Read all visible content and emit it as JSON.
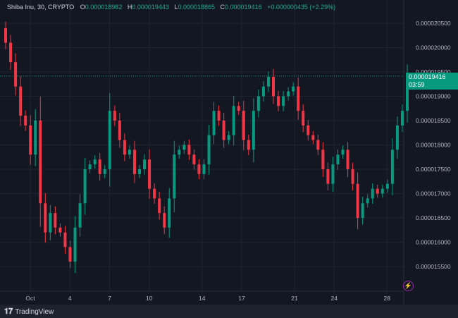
{
  "header": {
    "symbol": "Shiba Inu, 30, CRYPTO",
    "open_label": "O",
    "open": "0.000018982",
    "high_label": "H",
    "high": "0.000019443",
    "low_label": "L",
    "low": "0.000018865",
    "close_label": "C",
    "close": "0.000019416",
    "change": "+0.000000435 (+2.29%)"
  },
  "price_label": {
    "price": "0.000019416",
    "countdown": "03:59"
  },
  "footer": {
    "brand": "TradingView"
  },
  "icons": {
    "lightning": "lightning-icon",
    "logo": "tradingview-logo"
  },
  "colors": {
    "up": "#089981",
    "down": "#f23645",
    "background": "#131722",
    "grid": "#1f2433",
    "price_line": "#089981"
  },
  "chart_data": {
    "type": "candlestick",
    "interval": "30",
    "grid": true,
    "xlim": [
      "Sep 29",
      "Oct 29"
    ],
    "ylim": [
      1.51e-05,
      2.08e-05
    ],
    "y_ticks": [
      "0.000020500",
      "0.000020000",
      "0.000019500",
      "0.000019000",
      "0.000018500",
      "0.000018000",
      "0.000017500",
      "0.000017000",
      "0.000016500",
      "0.000016000",
      "0.000015500"
    ],
    "x_ticks": [
      {
        "label": "Oct",
        "day": 1
      },
      {
        "label": "4",
        "day": 4
      },
      {
        "label": "7",
        "day": 7
      },
      {
        "label": "10",
        "day": 10
      },
      {
        "label": "14",
        "day": 14
      },
      {
        "label": "17",
        "day": 17
      },
      {
        "label": "21",
        "day": 21
      },
      {
        "label": "24",
        "day": 24
      },
      {
        "label": "28",
        "day": 28
      }
    ],
    "last_price": 1.9416e-05,
    "closes": [
      2.01e-05,
      1.97e-05,
      1.92e-05,
      1.86e-05,
      1.84e-05,
      1.78e-05,
      1.85e-05,
      1.68e-05,
      1.62e-05,
      1.66e-05,
      1.63e-05,
      1.62e-05,
      1.59e-05,
      1.56e-05,
      1.63e-05,
      1.68e-05,
      1.75e-05,
      1.76e-05,
      1.77e-05,
      1.74e-05,
      1.75e-05,
      1.87e-05,
      1.85e-05,
      1.81e-05,
      1.78e-05,
      1.79e-05,
      1.74e-05,
      1.75e-05,
      1.77e-05,
      1.71e-05,
      1.69e-05,
      1.66e-05,
      1.63e-05,
      1.69e-05,
      1.78e-05,
      1.79e-05,
      1.8e-05,
      1.78e-05,
      1.76e-05,
      1.74e-05,
      1.76e-05,
      1.82e-05,
      1.87e-05,
      1.85e-05,
      1.81e-05,
      1.82e-05,
      1.88e-05,
      1.87e-05,
      1.81e-05,
      1.79e-05,
      1.87e-05,
      1.9e-05,
      1.92e-05,
      1.94e-05,
      1.9e-05,
      1.88e-05,
      1.9e-05,
      1.91e-05,
      1.92e-05,
      1.87e-05,
      1.84e-05,
      1.82e-05,
      1.81e-05,
      1.79e-05,
      1.75e-05,
      1.72e-05,
      1.76e-05,
      1.78e-05,
      1.79e-05,
      1.75e-05,
      1.72e-05,
      1.65e-05,
      1.68e-05,
      1.69e-05,
      1.71e-05,
      1.7e-05,
      1.71e-05,
      1.72e-05,
      1.79e-05,
      1.84e-05,
      1.87e-05,
      1.9416e-05
    ]
  }
}
